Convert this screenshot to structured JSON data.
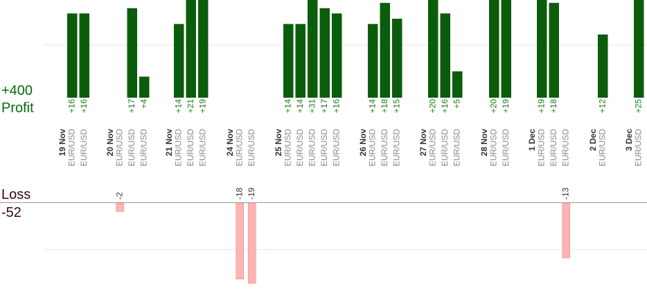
{
  "labels": {
    "profit_total": "+400",
    "profit": "Profit",
    "loss": "Loss",
    "loss_total": "-52"
  },
  "colors": {
    "profit_bar": "#0b5d0b",
    "profit_text": "#1a7a1a",
    "loss_bar": "#ffb3b3",
    "loss_edge": "#e58a8a",
    "grid": "#e6e6e6",
    "axis": "#999999",
    "pair_text": "#888888",
    "date_text": "#333333"
  },
  "chart_data": {
    "type": "bar",
    "title": "",
    "xlabel": "",
    "ylabel": "",
    "grid": true,
    "days": [
      {
        "date": "19 Nov",
        "trades": [
          {
            "pair": "EUR/USD",
            "pl": 16
          },
          {
            "pair": "EUR/USD",
            "pl": 16
          }
        ]
      },
      {
        "date": "20 Nov",
        "trades": [
          {
            "pair": "EUR/USD",
            "pl": -2
          },
          {
            "pair": "EUR/USD",
            "pl": 17
          },
          {
            "pair": "EUR/USD",
            "pl": 4
          }
        ]
      },
      {
        "date": "21 Nov",
        "trades": [
          {
            "pair": "EUR/USD",
            "pl": 14
          },
          {
            "pair": "EUR/USD",
            "pl": 21
          },
          {
            "pair": "EUR/USD",
            "pl": 19
          }
        ]
      },
      {
        "date": "24 Nov",
        "trades": [
          {
            "pair": "EUR/USD",
            "pl": -18
          },
          {
            "pair": "EUR/USD",
            "pl": -19
          }
        ]
      },
      {
        "date": "25 Nov",
        "trades": [
          {
            "pair": "EUR/USD",
            "pl": 14
          },
          {
            "pair": "EUR/USD",
            "pl": 14
          },
          {
            "pair": "EUR/USD",
            "pl": 31
          },
          {
            "pair": "EUR/USD",
            "pl": 17
          },
          {
            "pair": "EUR/USD",
            "pl": 16
          }
        ]
      },
      {
        "date": "26 Nov",
        "trades": [
          {
            "pair": "EUR/USD",
            "pl": 14
          },
          {
            "pair": "EUR/USD",
            "pl": 18
          },
          {
            "pair": "EUR/USD",
            "pl": 15
          }
        ]
      },
      {
        "date": "27 Nov",
        "trades": [
          {
            "pair": "EUR/USD",
            "pl": 20
          },
          {
            "pair": "EUR/USD",
            "pl": 16
          },
          {
            "pair": "EUR/USD",
            "pl": 5
          }
        ]
      },
      {
        "date": "28 Nov",
        "trades": [
          {
            "pair": "EUR/USD",
            "pl": 20
          },
          {
            "pair": "EUR/USD",
            "pl": 19
          }
        ]
      },
      {
        "date": "1 Dec",
        "trades": [
          {
            "pair": "EUR/USD",
            "pl": 19
          },
          {
            "pair": "EUR/USD",
            "pl": 18
          },
          {
            "pair": "EUR/USD",
            "pl": -13
          }
        ]
      },
      {
        "date": "2 Dec",
        "trades": [
          {
            "pair": "EUR/USD",
            "pl": 12
          }
        ]
      },
      {
        "date": "3 Dec",
        "trades": [
          {
            "pair": "EUR/USD",
            "pl": 25
          }
        ]
      }
    ]
  }
}
